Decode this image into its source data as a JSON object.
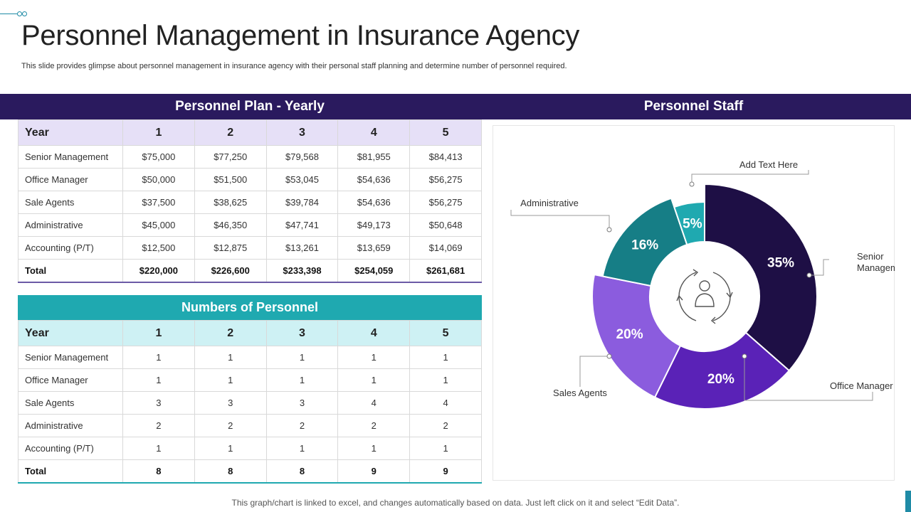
{
  "page": {
    "title": "Personnel Management in Insurance Agency",
    "subtitle": "This slide provides glimpse about personnel management in insurance agency with their personal staff planning and determine number of personnel required.",
    "footer": "This graph/chart is linked to excel,  and changes automatically based on data. Just left click on it and select “Edit Data”."
  },
  "plan": {
    "title": "Personnel Plan - Yearly",
    "header": [
      "Year",
      "1",
      "2",
      "3",
      "4",
      "5"
    ],
    "rows": [
      [
        "Senior Management",
        "$75,000",
        "$77,250",
        "$79,568",
        "$81,955",
        "$84,413"
      ],
      [
        "Office Manager",
        "$50,000",
        "$51,500",
        "$53,045",
        "$54,636",
        "$56,275"
      ],
      [
        "Sale Agents",
        "$37,500",
        "$38,625",
        "$39,784",
        "$54,636",
        "$56,275"
      ],
      [
        "Administrative",
        "$45,000",
        "$46,350",
        "$47,741",
        "$49,173",
        "$50,648"
      ],
      [
        "Accounting (P/T)",
        "$12,500",
        "$12,875",
        "$13,261",
        "$13,659",
        "$14,069"
      ]
    ],
    "total": [
      "Total",
      "$220,000",
      "$226,600",
      "$233,398",
      "$254,059",
      "$261,681"
    ]
  },
  "personnel": {
    "title": "Numbers of Personnel",
    "header": [
      "Year",
      "1",
      "2",
      "3",
      "4",
      "5"
    ],
    "rows": [
      [
        "Senior Management",
        "1",
        "1",
        "1",
        "1",
        "1"
      ],
      [
        "Office Manager",
        "1",
        "1",
        "1",
        "1",
        "1"
      ],
      [
        "Sale Agents",
        "3",
        "3",
        "3",
        "4",
        "4"
      ],
      [
        "Administrative",
        "2",
        "2",
        "2",
        "2",
        "2"
      ],
      [
        "Accounting (P/T)",
        "1",
        "1",
        "1",
        "1",
        "1"
      ]
    ],
    "total": [
      "Total",
      "8",
      "8",
      "8",
      "9",
      "9"
    ]
  },
  "staff": {
    "title": "Personnel Staff",
    "center_icon": "person-cycle-icon"
  },
  "chart_data": {
    "type": "pie",
    "variant": "donut",
    "title": "Personnel Staff",
    "slices": [
      {
        "label": "Senior Management",
        "value": 35,
        "value_label": "35%",
        "color": "#1e0f45"
      },
      {
        "label": "Office Manager",
        "value": 20,
        "value_label": "20%",
        "color": "#5a22b7"
      },
      {
        "label": "Sales Agents",
        "value": 20,
        "value_label": "20%",
        "color": "#8b5cde"
      },
      {
        "label": "Administrative",
        "value": 16,
        "value_label": "16%",
        "color": "#167e86"
      },
      {
        "label": "Add Text Here",
        "value": 5,
        "value_label": "5%",
        "color": "#1fa9b0"
      }
    ]
  }
}
